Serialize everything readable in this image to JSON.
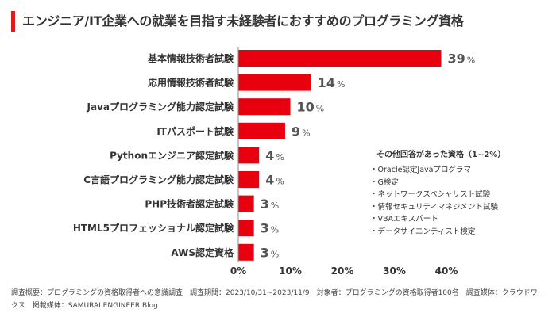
{
  "colors": {
    "accent": "#d81e1e",
    "bar": "#e8000f",
    "axis": "#888888",
    "text": "#333333"
  },
  "title": "エンジニア/IT企業への就業を目指す未経験者におすすめのプログラミング資格",
  "chart_data": {
    "type": "bar",
    "orientation": "horizontal",
    "categories": [
      "基本情報技術者試験",
      "応用情報技術者試験",
      "Javaプログラミング能力認定試験",
      "ITパスポート試験",
      "Pythonエンジニア認定試験",
      "C言語プログラミング能力認定試験",
      "PHP技術者認定試験",
      "HTML5プロフェッショナル認定試験",
      "AWS認定資格"
    ],
    "values": [
      39,
      14,
      10,
      9,
      4,
      4,
      3,
      3,
      3
    ],
    "value_unit": "%",
    "xlim": [
      0,
      40
    ],
    "xticks": [
      "0%",
      "10%",
      "20%",
      "30%",
      "40%"
    ],
    "grid": false
  },
  "others": {
    "title": "その他回答があった資格（1~2%）",
    "items": [
      "Oracle認定Javaプログラマ",
      "G検定",
      "ネットワークスペシャリスト試験",
      "情報セキュリティマネジメント試験",
      "VBAエキスパート",
      "データサイエンティスト検定"
    ]
  },
  "footnote": "調査概要：プログラミングの資格取得者への意識調査　調査期間：2023/10/31~2023/11/9　対象者：プログラミングの資格取得者100名　調査媒体：クラウドワークス　掲載媒体：SAMURAI ENGINEER Blog"
}
